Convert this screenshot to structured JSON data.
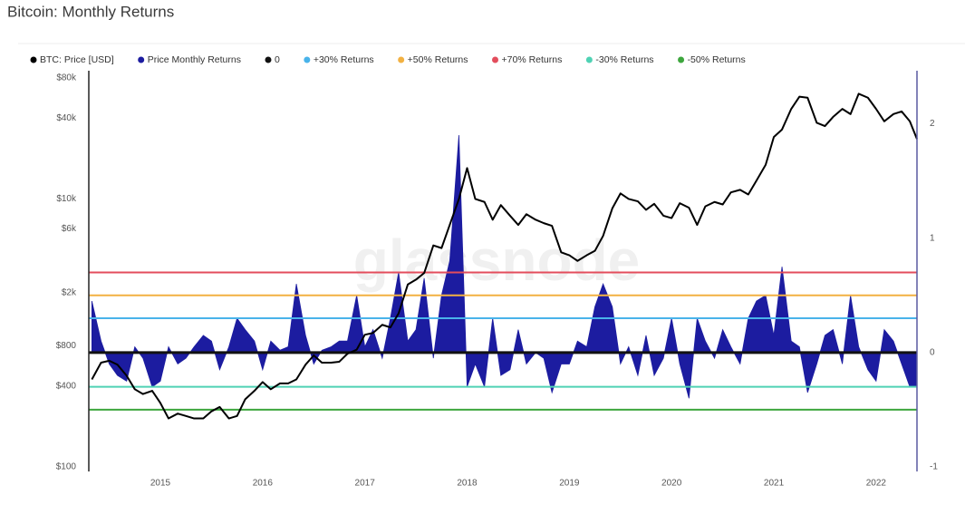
{
  "chart_data": {
    "type": "line",
    "title": "Bitcoin: Monthly Returns",
    "watermark": "glassnode",
    "x": [
      2014.33,
      2014.42,
      2014.5,
      2014.58,
      2014.67,
      2014.75,
      2014.83,
      2014.92,
      2015.0,
      2015.08,
      2015.17,
      2015.25,
      2015.33,
      2015.42,
      2015.5,
      2015.58,
      2015.67,
      2015.75,
      2015.83,
      2015.92,
      2016.0,
      2016.08,
      2016.17,
      2016.25,
      2016.33,
      2016.42,
      2016.5,
      2016.58,
      2016.67,
      2016.75,
      2016.83,
      2016.92,
      2017.0,
      2017.08,
      2017.17,
      2017.25,
      2017.33,
      2017.42,
      2017.5,
      2017.58,
      2017.67,
      2017.75,
      2017.83,
      2017.92,
      2018.0,
      2018.08,
      2018.17,
      2018.25,
      2018.33,
      2018.42,
      2018.5,
      2018.58,
      2018.67,
      2018.75,
      2018.83,
      2018.92,
      2019.0,
      2019.08,
      2019.17,
      2019.25,
      2019.33,
      2019.42,
      2019.5,
      2019.58,
      2019.67,
      2019.75,
      2019.83,
      2019.92,
      2020.0,
      2020.08,
      2020.17,
      2020.25,
      2020.33,
      2020.42,
      2020.5,
      2020.58,
      2020.67,
      2020.75,
      2020.83,
      2020.92,
      2021.0,
      2021.08,
      2021.17,
      2021.25,
      2021.33,
      2021.42,
      2021.5,
      2021.58,
      2021.67,
      2021.75,
      2021.83,
      2021.92,
      2022.0,
      2022.08,
      2022.17,
      2022.25,
      2022.33,
      2022.4
    ],
    "xlim": [
      2014.3,
      2022.4
    ],
    "xticks": [
      2015,
      2016,
      2017,
      2018,
      2019,
      2020,
      2021,
      2022
    ],
    "log_y": true,
    "ylim": [
      100,
      80000
    ],
    "yticks": [
      {
        "value": 100,
        "label": "$100"
      },
      {
        "value": 400,
        "label": "$400"
      },
      {
        "value": 800,
        "label": "$800"
      },
      {
        "value": 2000,
        "label": "$2k"
      },
      {
        "value": 6000,
        "label": "$6k"
      },
      {
        "value": 10000,
        "label": "$10k"
      },
      {
        "value": 40000,
        "label": "$40k"
      },
      {
        "value": 80000,
        "label": "$80k"
      }
    ],
    "y2lim": [
      -1,
      2.4
    ],
    "y2ticks": [
      -1,
      0,
      1,
      2
    ],
    "series": [
      {
        "name": "BTC: Price [USD]",
        "color": "#000000",
        "values": [
          450,
          600,
          620,
          580,
          480,
          380,
          350,
          370,
          300,
          230,
          250,
          240,
          230,
          230,
          260,
          280,
          230,
          240,
          320,
          370,
          430,
          380,
          420,
          420,
          450,
          580,
          680,
          600,
          600,
          610,
          700,
          750,
          970,
          1000,
          1150,
          1100,
          1400,
          2300,
          2500,
          2800,
          4500,
          4300,
          6400,
          10000,
          17000,
          10000,
          9500,
          7000,
          9000,
          7500,
          6400,
          7700,
          7000,
          6600,
          6300,
          4000,
          3800,
          3450,
          3800,
          4100,
          5300,
          8500,
          11000,
          10000,
          9600,
          8300,
          9200,
          7500,
          7200,
          9300,
          8600,
          6400,
          8800,
          9500,
          9100,
          11200,
          11700,
          10800,
          13700,
          18000,
          29000,
          33000,
          47000,
          58000,
          57000,
          37000,
          35000,
          41000,
          47000,
          43000,
          61000,
          57000,
          47000,
          38000,
          43000,
          45000,
          38000,
          28000
        ]
      },
      {
        "name": "Price Monthly Returns",
        "color": "#1c1ca0",
        "axis": "y2",
        "values": [
          0.45,
          0.1,
          -0.1,
          -0.2,
          -0.25,
          0.05,
          -0.05,
          -0.3,
          -0.25,
          0.05,
          -0.1,
          -0.05,
          0.05,
          0.15,
          0.1,
          -0.15,
          0.05,
          0.3,
          0.2,
          0.1,
          -0.15,
          0.1,
          0.02,
          0.05,
          0.6,
          0.15,
          -0.1,
          0.02,
          0.05,
          0.1,
          0.1,
          0.5,
          0.05,
          0.2,
          -0.05,
          0.3,
          0.7,
          0.1,
          0.2,
          0.65,
          -0.05,
          0.5,
          0.8,
          1.9,
          -0.3,
          -0.1,
          -0.3,
          0.3,
          -0.2,
          -0.15,
          0.2,
          -0.1,
          0.0,
          -0.05,
          -0.35,
          -0.1,
          -0.1,
          0.1,
          0.05,
          0.4,
          0.6,
          0.4,
          -0.1,
          0.05,
          -0.2,
          0.15,
          -0.2,
          -0.05,
          0.3,
          -0.1,
          -0.4,
          0.3,
          0.1,
          -0.05,
          0.2,
          0.05,
          -0.1,
          0.3,
          0.45,
          0.5,
          0.15,
          0.75,
          0.1,
          0.05,
          -0.35,
          -0.1,
          0.15,
          0.2,
          -0.1,
          0.5,
          0.05,
          -0.15,
          -0.25,
          0.2,
          0.1,
          -0.1,
          -0.3,
          -0.3
        ]
      }
    ],
    "reference_lines": [
      {
        "name": "0",
        "color": "#111111",
        "value": 0
      },
      {
        "name": "+30% Returns",
        "color": "#49b3ea",
        "value": 0.3
      },
      {
        "name": "+50% Returns",
        "color": "#f2b142",
        "value": 0.5
      },
      {
        "name": "+70% Returns",
        "color": "#e34d5c",
        "value": 0.7
      },
      {
        "name": "-30% Returns",
        "color": "#4fd2b4",
        "value": -0.3
      },
      {
        "name": "-50% Returns",
        "color": "#3da63d",
        "value": -0.5
      }
    ]
  }
}
